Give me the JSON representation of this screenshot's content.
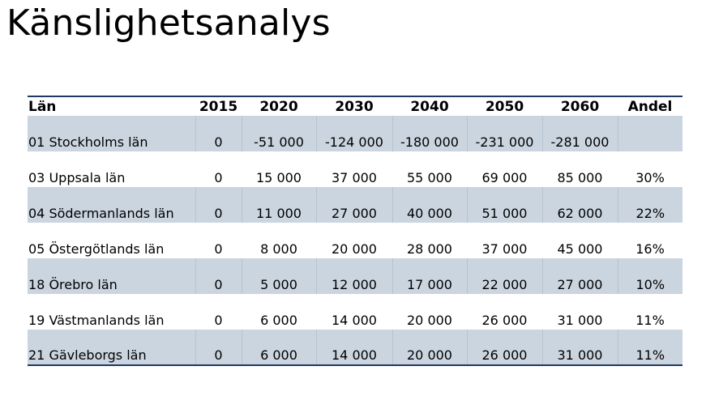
{
  "title": "Känslighetsanalys",
  "table": {
    "headers": [
      "Län",
      "2015",
      "2020",
      "2030",
      "2040",
      "2050",
      "2060",
      "Andel"
    ],
    "rows": [
      [
        "01 Stockholms län",
        "0",
        "-51 000",
        "-124 000",
        "-180 000",
        "-231 000",
        "-281 000",
        ""
      ],
      [
        "03 Uppsala län",
        "0",
        "15 000",
        "37 000",
        "55 000",
        "69 000",
        "85 000",
        "30%"
      ],
      [
        "04 Södermanlands län",
        "0",
        "11 000",
        "27 000",
        "40 000",
        "51 000",
        "62 000",
        "22%"
      ],
      [
        "05 Östergötlands län",
        "0",
        "8 000",
        "20 000",
        "28 000",
        "37 000",
        "45 000",
        "16%"
      ],
      [
        "18 Örebro län",
        "0",
        "5 000",
        "12 000",
        "17 000",
        "22 000",
        "27 000",
        "10%"
      ],
      [
        "19 Västmanlands län",
        "0",
        "6 000",
        "14 000",
        "20 000",
        "26 000",
        "31 000",
        "11%"
      ],
      [
        "21 Gävleborgs län",
        "0",
        "6 000",
        "14 000",
        "20 000",
        "26 000",
        "31 000",
        "11%"
      ]
    ]
  },
  "colors": {
    "shade": "#cbd5e0",
    "rule": "#1f3864"
  }
}
